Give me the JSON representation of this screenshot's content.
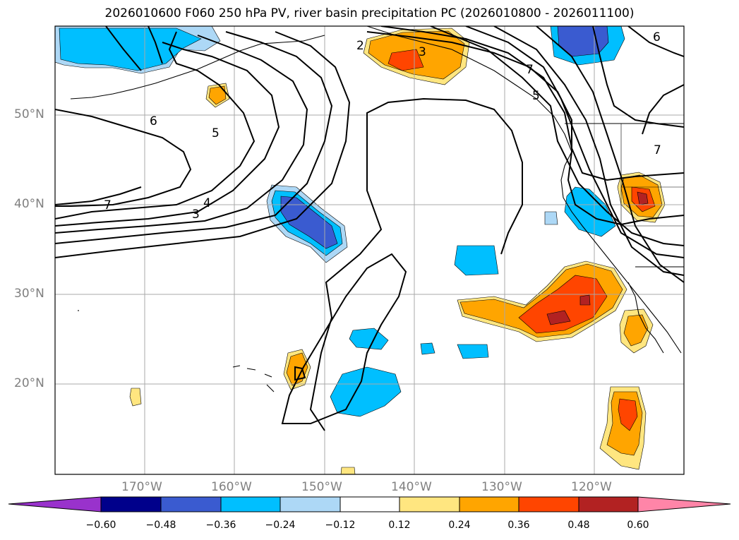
{
  "title": "2026010600 F060 250 hPa PV, river basin precipitation PC (2026010800 - 2026011100)",
  "lat_labels": [
    "50°N",
    "40°N",
    "30°N",
    "20°N"
  ],
  "lon_labels": [
    "170°W",
    "160°W",
    "150°W",
    "140°W",
    "130°W",
    "120°W"
  ],
  "contour_labels": [
    "2",
    "3",
    "6",
    "5",
    "7",
    "4",
    "3",
    "7",
    "6",
    "5",
    "7"
  ],
  "colorbar": {
    "ticks": [
      "−0.60",
      "−0.48",
      "−0.36",
      "−0.24",
      "−0.12",
      "0.12",
      "0.24",
      "0.36",
      "0.48",
      "0.60"
    ],
    "colors": [
      "#9932cc",
      "#00008b",
      "#3a5bd0",
      "#00bfff",
      "#add8f6",
      "#ffffff",
      "#ffe680",
      "#ffa500",
      "#ff4500",
      "#b22222",
      "#ff85a8"
    ]
  }
}
